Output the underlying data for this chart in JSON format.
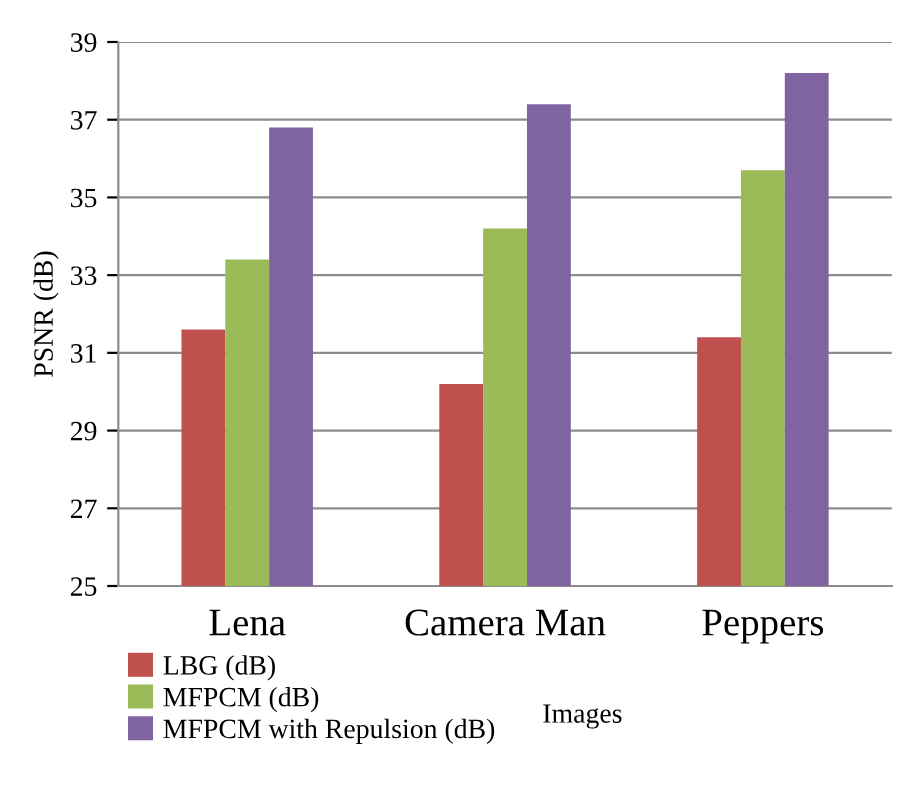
{
  "chart_data": {
    "type": "bar",
    "xlabel": "Images",
    "ylabel": "PSNR (dB)",
    "categories": [
      "Lena",
      "Camera Man",
      "Peppers"
    ],
    "series": [
      {
        "name": "LBG (dB)",
        "color": "#c0504d",
        "values": [
          31.6,
          30.2,
          31.4
        ]
      },
      {
        "name": "MFPCM (dB)",
        "color": "#9bbb59",
        "values": [
          33.4,
          34.2,
          35.7
        ]
      },
      {
        "name": "MFPCM with Repulsion (dB)",
        "color": "#8064a2",
        "values": [
          36.8,
          37.4,
          38.2
        ]
      }
    ],
    "ylim": [
      25,
      39
    ],
    "yticks": [
      25,
      27,
      29,
      31,
      33,
      35,
      37,
      39
    ],
    "grid": "y",
    "legend": "bottom left"
  }
}
